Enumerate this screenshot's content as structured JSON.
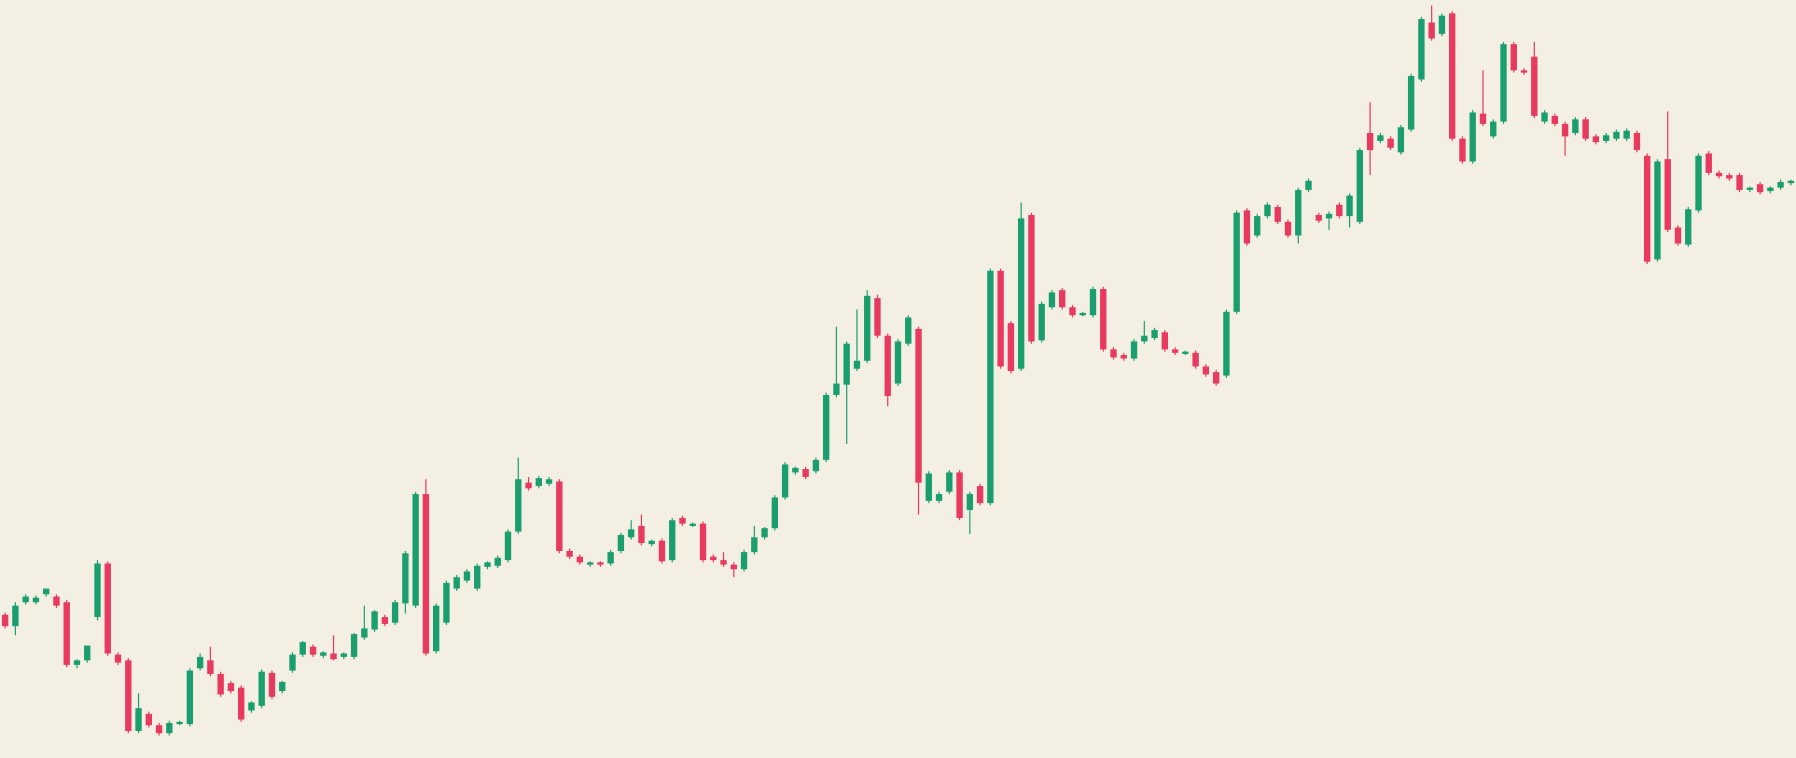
{
  "chart_data": {
    "type": "candlestick",
    "up_color": "#1b9e6e",
    "down_color": "#e8395e",
    "background": "#f4efe3",
    "ylim": [
      0,
      662
    ],
    "ohlc": [
      [
        124,
        126,
        112,
        114
      ],
      [
        114,
        135,
        106,
        132
      ],
      [
        135,
        142,
        133,
        140
      ],
      [
        135,
        141,
        133,
        139
      ],
      [
        142,
        147,
        140,
        147
      ],
      [
        140,
        142,
        130,
        132
      ],
      [
        135,
        137,
        78,
        80
      ],
      [
        80,
        85,
        77,
        84
      ],
      [
        84,
        97,
        82,
        97
      ],
      [
        122,
        172,
        119,
        169
      ],
      [
        169,
        171,
        88,
        90
      ],
      [
        89,
        91,
        80,
        82
      ],
      [
        84,
        86,
        20,
        22
      ],
      [
        22,
        55,
        20,
        42
      ],
      [
        37,
        39,
        25,
        27
      ],
      [
        27,
        29,
        18,
        20
      ],
      [
        20,
        31,
        18,
        29
      ],
      [
        28,
        31,
        27,
        30
      ],
      [
        28,
        77,
        26,
        75
      ],
      [
        77,
        90,
        75,
        87
      ],
      [
        84,
        96,
        70,
        72
      ],
      [
        72,
        74,
        52,
        54
      ],
      [
        64,
        66,
        55,
        57
      ],
      [
        60,
        62,
        30,
        32
      ],
      [
        40,
        48,
        38,
        47
      ],
      [
        44,
        76,
        42,
        74
      ],
      [
        73,
        75,
        50,
        52
      ],
      [
        57,
        66,
        55,
        65
      ],
      [
        75,
        91,
        73,
        89
      ],
      [
        89,
        101,
        87,
        100
      ],
      [
        96,
        98,
        87,
        89
      ],
      [
        88,
        92,
        86,
        91
      ],
      [
        90,
        106,
        84,
        85
      ],
      [
        87,
        91,
        85,
        90
      ],
      [
        87,
        108,
        85,
        107
      ],
      [
        104,
        132,
        102,
        112
      ],
      [
        111,
        128,
        109,
        127
      ],
      [
        122,
        124,
        114,
        116
      ],
      [
        117,
        137,
        115,
        135
      ],
      [
        134,
        180,
        125,
        178
      ],
      [
        132,
        232,
        130,
        230
      ],
      [
        230,
        243,
        88,
        90
      ],
      [
        92,
        134,
        90,
        132
      ],
      [
        117,
        154,
        115,
        152
      ],
      [
        147,
        159,
        145,
        157
      ],
      [
        154,
        164,
        152,
        162
      ],
      [
        147,
        169,
        145,
        167
      ],
      [
        166,
        171,
        164,
        170
      ],
      [
        167,
        176,
        165,
        174
      ],
      [
        172,
        199,
        170,
        197
      ],
      [
        197,
        262,
        195,
        243
      ],
      [
        240,
        245,
        233,
        235
      ],
      [
        237,
        246,
        235,
        244
      ],
      [
        239,
        245,
        237,
        243
      ],
      [
        241,
        243,
        178,
        180
      ],
      [
        180,
        182,
        173,
        175
      ],
      [
        175,
        177,
        168,
        170
      ],
      [
        168,
        171,
        166,
        170
      ],
      [
        170,
        171,
        166,
        168
      ],
      [
        169,
        181,
        167,
        179
      ],
      [
        180,
        196,
        178,
        194
      ],
      [
        192,
        207,
        190,
        199
      ],
      [
        202,
        212,
        185,
        187
      ],
      [
        186,
        190,
        184,
        189
      ],
      [
        189,
        191,
        169,
        171
      ],
      [
        172,
        209,
        170,
        207
      ],
      [
        209,
        211,
        202,
        204
      ],
      [
        202,
        205,
        201,
        204
      ],
      [
        204,
        206,
        170,
        172
      ],
      [
        175,
        177,
        170,
        172
      ],
      [
        172,
        179,
        166,
        168
      ],
      [
        168,
        170,
        157,
        164
      ],
      [
        164,
        181,
        162,
        179
      ],
      [
        179,
        202,
        177,
        192
      ],
      [
        192,
        201,
        190,
        200
      ],
      [
        200,
        229,
        198,
        227
      ],
      [
        227,
        258,
        225,
        256
      ],
      [
        249,
        254,
        247,
        253
      ],
      [
        252,
        254,
        243,
        245
      ],
      [
        250,
        262,
        248,
        260
      ],
      [
        260,
        319,
        258,
        317
      ],
      [
        317,
        377,
        315,
        327
      ],
      [
        326,
        364,
        274,
        362
      ],
      [
        340,
        392,
        338,
        347
      ],
      [
        347,
        409,
        345,
        404
      ],
      [
        402,
        405,
        367,
        369
      ],
      [
        369,
        371,
        307,
        316
      ],
      [
        327,
        366,
        325,
        364
      ],
      [
        362,
        387,
        360,
        385
      ],
      [
        375,
        377,
        212,
        240
      ],
      [
        224,
        250,
        222,
        248
      ],
      [
        224,
        232,
        222,
        230
      ],
      [
        232,
        251,
        230,
        249
      ],
      [
        249,
        251,
        207,
        209
      ],
      [
        216,
        232,
        195,
        230
      ],
      [
        237,
        239,
        220,
        222
      ],
      [
        222,
        428,
        220,
        426
      ],
      [
        426,
        428,
        340,
        342
      ],
      [
        380,
        382,
        336,
        338
      ],
      [
        340,
        486,
        338,
        472
      ],
      [
        475,
        477,
        362,
        364
      ],
      [
        365,
        399,
        363,
        397
      ],
      [
        394,
        409,
        392,
        407
      ],
      [
        409,
        411,
        392,
        394
      ],
      [
        394,
        396,
        385,
        387
      ],
      [
        387,
        390,
        386,
        389
      ],
      [
        387,
        412,
        385,
        410
      ],
      [
        410,
        412,
        355,
        357
      ],
      [
        357,
        359,
        348,
        350
      ],
      [
        352,
        354,
        347,
        349
      ],
      [
        349,
        366,
        347,
        364
      ],
      [
        364,
        382,
        362,
        369
      ],
      [
        367,
        376,
        365,
        374
      ],
      [
        372,
        374,
        355,
        357
      ],
      [
        357,
        359,
        352,
        354
      ],
      [
        353,
        356,
        352,
        355
      ],
      [
        354,
        356,
        340,
        342
      ],
      [
        342,
        344,
        333,
        335
      ],
      [
        337,
        339,
        325,
        327
      ],
      [
        334,
        392,
        332,
        390
      ],
      [
        390,
        479,
        388,
        477
      ],
      [
        479,
        481,
        448,
        450
      ],
      [
        457,
        476,
        455,
        474
      ],
      [
        474,
        486,
        472,
        484
      ],
      [
        482,
        484,
        467,
        469
      ],
      [
        469,
        471,
        455,
        457
      ],
      [
        457,
        499,
        450,
        497
      ],
      [
        497,
        507,
        495,
        505
      ],
      [
        475,
        477,
        468,
        470
      ],
      [
        472,
        478,
        462,
        476
      ],
      [
        484,
        486,
        472,
        474
      ],
      [
        474,
        494,
        464,
        492
      ],
      [
        469,
        534,
        467,
        532
      ],
      [
        547,
        574,
        510,
        532
      ],
      [
        540,
        547,
        538,
        545
      ],
      [
        542,
        544,
        532,
        534
      ],
      [
        530,
        554,
        528,
        552
      ],
      [
        550,
        599,
        548,
        597
      ],
      [
        594,
        649,
        592,
        647
      ],
      [
        644,
        659,
        628,
        630
      ],
      [
        634,
        652,
        632,
        650
      ],
      [
        652,
        654,
        540,
        542
      ],
      [
        542,
        544,
        520,
        522
      ],
      [
        522,
        567,
        520,
        565
      ],
      [
        564,
        602,
        553,
        555
      ],
      [
        544,
        559,
        542,
        557
      ],
      [
        557,
        627,
        555,
        625
      ],
      [
        625,
        627,
        600,
        602
      ],
      [
        602,
        604,
        598,
        600
      ],
      [
        614,
        627,
        560,
        562
      ],
      [
        557,
        567,
        555,
        565
      ],
      [
        562,
        564,
        553,
        555
      ],
      [
        555,
        557,
        527,
        544
      ],
      [
        547,
        561,
        545,
        559
      ],
      [
        559,
        561,
        540,
        542
      ],
      [
        544,
        546,
        537,
        539
      ],
      [
        540,
        547,
        538,
        545
      ],
      [
        542,
        550,
        540,
        548
      ],
      [
        542,
        551,
        540,
        549
      ],
      [
        547,
        549,
        530,
        532
      ],
      [
        527,
        529,
        432,
        434
      ],
      [
        436,
        524,
        434,
        522
      ],
      [
        524,
        566,
        460,
        462
      ],
      [
        464,
        466,
        448,
        450
      ],
      [
        449,
        482,
        447,
        480
      ],
      [
        479,
        529,
        477,
        527
      ],
      [
        529,
        531,
        510,
        512
      ],
      [
        512,
        514,
        507,
        509
      ],
      [
        510,
        512,
        505,
        507
      ],
      [
        510,
        512,
        495,
        497
      ],
      [
        497,
        500,
        495,
        499
      ],
      [
        502,
        504,
        493,
        495
      ],
      [
        496,
        500,
        494,
        499
      ],
      [
        499,
        506,
        497,
        504
      ],
      [
        503,
        506,
        501,
        505
      ]
    ]
  }
}
